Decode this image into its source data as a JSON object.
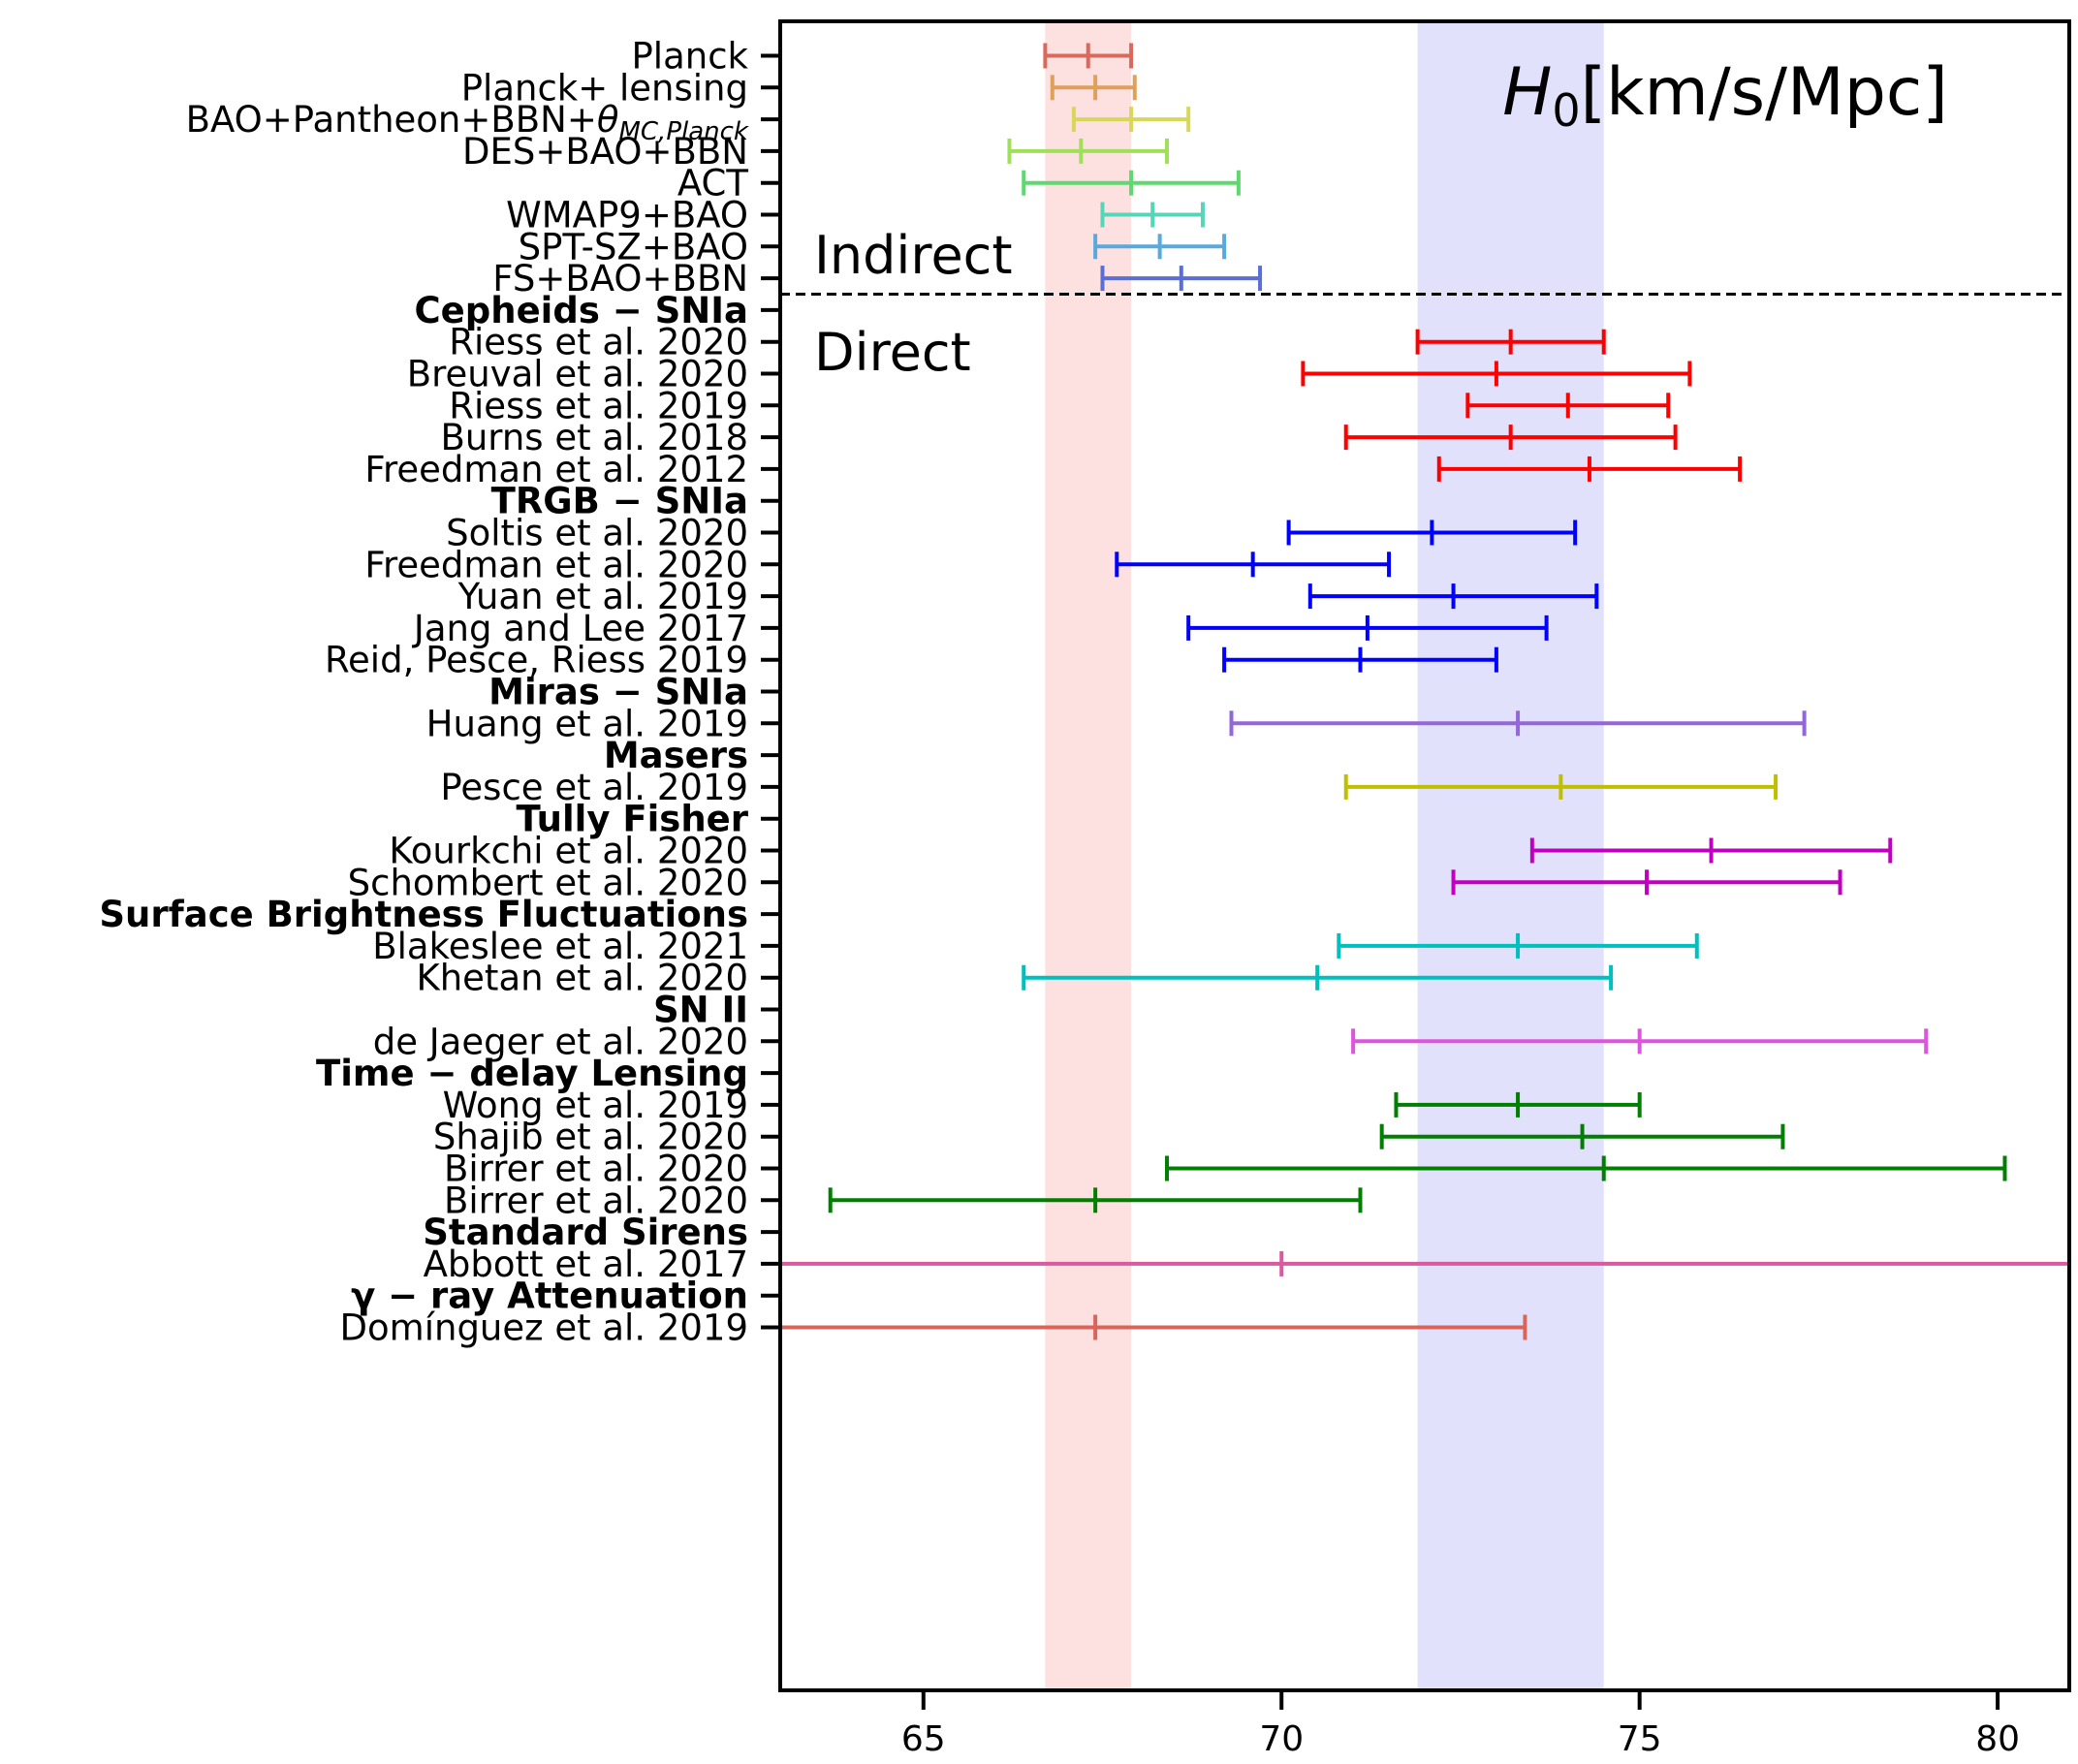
{
  "chart_data": {
    "type": "errorbar",
    "title": "H0[km/s/Mpc]",
    "xlim": [
      63.0,
      81.0
    ],
    "x_ticks": [
      65,
      70,
      75,
      80
    ],
    "x_tick_labels": [
      "65",
      "70",
      "75",
      "80"
    ],
    "bands": [
      {
        "low": 66.7,
        "high": 67.9,
        "color": "#fde1e1"
      },
      {
        "low": 71.9,
        "high": 74.5,
        "color": "#e1e1fb"
      }
    ],
    "region_labels": [
      "Indirect",
      "Direct"
    ],
    "rows": [
      {
        "label": "Planck",
        "bold": false,
        "value": 67.3,
        "low": 66.7,
        "high": 67.9,
        "color": "#d9695b"
      },
      {
        "label": "Planck+ lensing",
        "bold": false,
        "value": 67.4,
        "low": 66.8,
        "high": 67.95,
        "color": "#dfa05a"
      },
      {
        "label": "BAO+Pantheon+BBN+θMC,Planck",
        "bold": false,
        "value": 67.9,
        "low": 67.1,
        "high": 68.7,
        "color": "#d7d75a"
      },
      {
        "label": "DES+BAO+BBN",
        "bold": false,
        "value": 67.2,
        "low": 66.2,
        "high": 68.4,
        "color": "#a0df5a"
      },
      {
        "label": "ACT",
        "bold": false,
        "value": 67.9,
        "low": 66.4,
        "high": 69.4,
        "color": "#5fd96f"
      },
      {
        "label": "WMAP9+BAO",
        "bold": false,
        "value": 68.2,
        "low": 67.5,
        "high": 68.9,
        "color": "#55d6b8"
      },
      {
        "label": "SPT-SZ+BAO",
        "bold": false,
        "value": 68.3,
        "low": 67.4,
        "high": 69.2,
        "color": "#5aa9dd"
      },
      {
        "label": "FS+BAO+BBN",
        "bold": false,
        "value": 68.6,
        "low": 67.5,
        "high": 69.7,
        "color": "#5a6ed6"
      },
      {
        "label": "Cepheids − SNIa",
        "bold": true
      },
      {
        "label": "Riess et al. 2020",
        "bold": false,
        "value": 73.2,
        "low": 71.9,
        "high": 74.5,
        "color": "#ff0000"
      },
      {
        "label": "Breuval et al. 2020",
        "bold": false,
        "value": 73.0,
        "low": 70.3,
        "high": 75.7,
        "color": "#ff0000"
      },
      {
        "label": "Riess et al. 2019",
        "bold": false,
        "value": 74.0,
        "low": 72.6,
        "high": 75.4,
        "color": "#ff0000"
      },
      {
        "label": "Burns et al. 2018",
        "bold": false,
        "value": 73.2,
        "low": 70.9,
        "high": 75.5,
        "color": "#ff0000"
      },
      {
        "label": "Freedman et al. 2012",
        "bold": false,
        "value": 74.3,
        "low": 72.2,
        "high": 76.4,
        "color": "#ff0000"
      },
      {
        "label": "TRGB − SNIa",
        "bold": true
      },
      {
        "label": "Soltis et al. 2020",
        "bold": false,
        "value": 72.1,
        "low": 70.1,
        "high": 74.1,
        "color": "#0000ff"
      },
      {
        "label": "Freedman et al. 2020",
        "bold": false,
        "value": 69.6,
        "low": 67.7,
        "high": 71.5,
        "color": "#0000ff"
      },
      {
        "label": "Yuan et al. 2019",
        "bold": false,
        "value": 72.4,
        "low": 70.4,
        "high": 74.4,
        "color": "#0000ff"
      },
      {
        "label": "Jang and Lee 2017",
        "bold": false,
        "value": 71.2,
        "low": 68.7,
        "high": 73.7,
        "color": "#0000ff"
      },
      {
        "label": "Reid, Pesce, Riess 2019",
        "bold": false,
        "value": 71.1,
        "low": 69.2,
        "high": 73.0,
        "color": "#0000ff"
      },
      {
        "label": "Miras − SNIa",
        "bold": true
      },
      {
        "label": "Huang et al. 2019",
        "bold": false,
        "value": 73.3,
        "low": 69.3,
        "high": 77.3,
        "color": "#9467d8"
      },
      {
        "label": "Masers",
        "bold": true
      },
      {
        "label": "Pesce et al. 2019",
        "bold": false,
        "value": 73.9,
        "low": 70.9,
        "high": 76.9,
        "color": "#bfbf00"
      },
      {
        "label": "Tully Fisher",
        "bold": true
      },
      {
        "label": "Kourkchi et al. 2020",
        "bold": false,
        "value": 76.0,
        "low": 73.5,
        "high": 78.5,
        "color": "#bf00bf"
      },
      {
        "label": "Schombert et al. 2020",
        "bold": false,
        "value": 75.1,
        "low": 72.4,
        "high": 77.8,
        "color": "#bf00bf"
      },
      {
        "label": "Surface Brightness Fluctuations",
        "bold": true
      },
      {
        "label": "Blakeslee et al. 2021",
        "bold": false,
        "value": 73.3,
        "low": 70.8,
        "high": 75.8,
        "color": "#00bfbf"
      },
      {
        "label": "Khetan et al. 2020",
        "bold": false,
        "value": 70.5,
        "low": 66.4,
        "high": 74.6,
        "color": "#00bfbf"
      },
      {
        "label": "SN II",
        "bold": true
      },
      {
        "label": "de Jaeger et al. 2020",
        "bold": false,
        "value": 75.0,
        "low": 71.0,
        "high": 79.0,
        "color": "#dd55dd"
      },
      {
        "label": "Time − delay Lensing",
        "bold": true
      },
      {
        "label": "Wong et al. 2019",
        "bold": false,
        "value": 73.3,
        "low": 71.6,
        "high": 75.0,
        "color": "#007f00"
      },
      {
        "label": "Shajib et al. 2020",
        "bold": false,
        "value": 74.2,
        "low": 71.4,
        "high": 77.0,
        "color": "#007f00"
      },
      {
        "label": "Birrer et al. 2020",
        "bold": false,
        "value": 74.5,
        "low": 68.4,
        "high": 80.1,
        "color": "#007f00"
      },
      {
        "label": "Birrer et al. 2020",
        "bold": false,
        "value": 67.4,
        "low": 63.7,
        "high": 71.1,
        "color": "#007f00"
      },
      {
        "label": "Standard Sirens",
        "bold": true
      },
      {
        "label": "Abbott et al. 2017",
        "bold": false,
        "value": 70.0,
        "low": 62.0,
        "high": 82.0,
        "color": "#d95a9e"
      },
      {
        "label": "γ − ray Attenuation",
        "bold": true
      },
      {
        "label": "Domínguez et al. 2019",
        "bold": false,
        "value": 67.4,
        "low": 62.0,
        "high": 73.4,
        "color": "#d9645a"
      }
    ]
  }
}
